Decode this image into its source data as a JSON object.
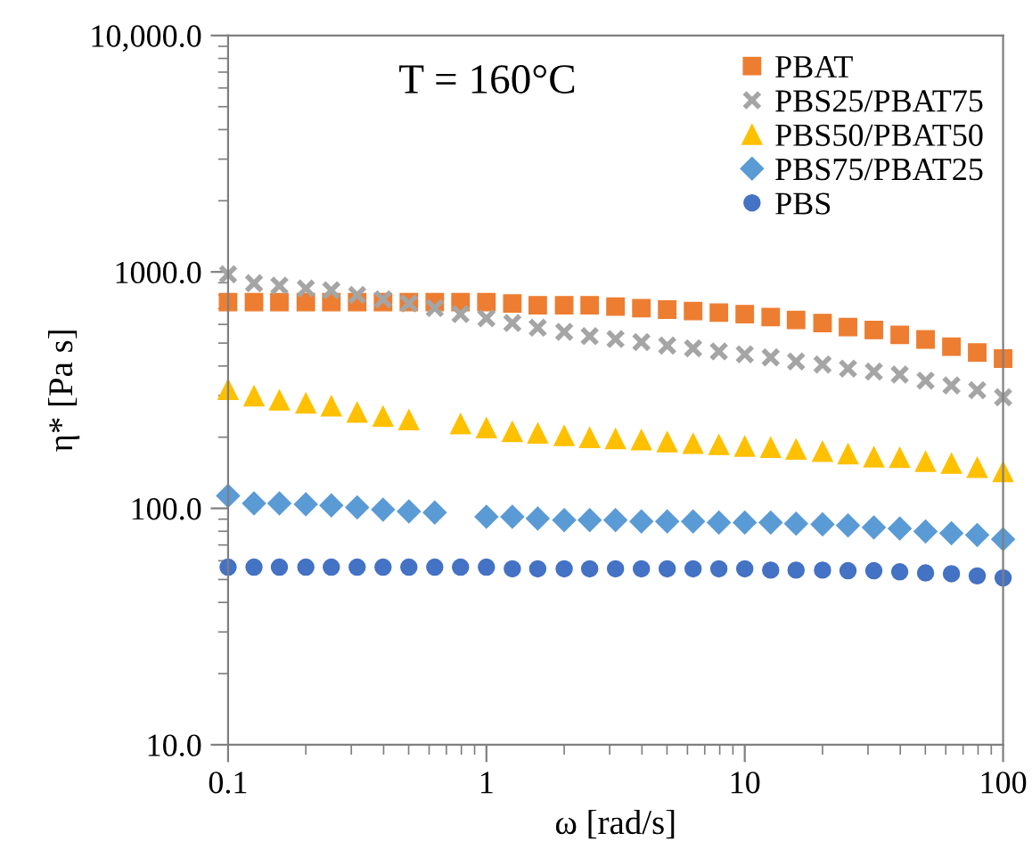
{
  "chart_data": {
    "type": "scatter",
    "title": "T = 160°C",
    "xlabel": "ω [rad/s]",
    "ylabel": "η* [Pa s]",
    "log": "xy",
    "legend": "top right",
    "grid": false,
    "x": [
      0.1,
      0.126,
      0.158,
      0.2,
      0.251,
      0.316,
      0.398,
      0.501,
      0.631,
      0.794,
      1,
      1.26,
      1.58,
      2,
      2.51,
      3.16,
      3.98,
      5.01,
      6.31,
      7.94,
      10,
      12.6,
      15.8,
      20,
      25.1,
      31.6,
      39.8,
      50.1,
      63.1,
      79.4,
      100
    ],
    "xlim": [
      0.1,
      100
    ],
    "xticks": [
      0.1,
      1,
      10,
      100
    ],
    "ylim": [
      10,
      10000
    ],
    "yticks": [
      {
        "value": 10,
        "label": "10.0"
      },
      {
        "value": 100,
        "label": "100.0"
      },
      {
        "value": 1000,
        "label": "1000.0"
      },
      {
        "value": 10000,
        "label": "10,000.0"
      }
    ],
    "series": [
      {
        "name": "PBAT",
        "color": "#ed7d31",
        "marker": "square",
        "values": [
          745,
          745,
          745,
          745,
          745,
          745,
          745,
          745,
          745,
          745,
          745,
          735,
          723,
          723,
          723,
          713,
          703,
          693,
          683,
          673,
          663,
          644,
          626,
          608,
          584,
          568,
          542,
          518,
          483,
          456,
          430
        ]
      },
      {
        "name": "PBS25/PBAT75",
        "color": "#a5a5a5",
        "marker": "cross",
        "values": [
          977,
          896,
          875,
          851,
          836,
          799,
          766,
          736,
          703,
          663,
          637,
          608,
          581,
          558,
          535,
          520,
          505,
          488,
          475,
          461,
          448,
          435,
          418,
          406,
          390,
          379,
          368,
          347,
          331,
          316,
          295
        ]
      },
      {
        "name": "PBS50/PBAT50",
        "color": "#ffc000",
        "marker": "triangle",
        "values": [
          318,
          299,
          287,
          279,
          271,
          255,
          245,
          237,
          null,
          228,
          219,
          211,
          208,
          203,
          199,
          197,
          195,
          191,
          188,
          186,
          183,
          181,
          178,
          174,
          170,
          165,
          164,
          158,
          155,
          149,
          143
        ]
      },
      {
        "name": "PBS75/PBAT25",
        "color": "#5b9bd5",
        "marker": "diamond",
        "values": [
          113,
          105,
          105,
          104,
          103,
          101,
          98.8,
          97.1,
          96.0,
          null,
          92.2,
          92.2,
          90.6,
          89.1,
          89.1,
          89.1,
          88.1,
          88.1,
          88.1,
          87.1,
          87.1,
          87.1,
          86.1,
          85.6,
          84.6,
          83.1,
          82.2,
          79.8,
          78.4,
          77.1,
          74.0
        ]
      },
      {
        "name": "PBS",
        "color": "#4472c4",
        "marker": "circle",
        "values": [
          56.4,
          56.4,
          56.4,
          56.4,
          56.4,
          56.4,
          56.4,
          56.4,
          56.4,
          56.4,
          56.4,
          55.5,
          55.5,
          55.5,
          55.5,
          55.5,
          55.5,
          55.5,
          55.5,
          55.5,
          55.5,
          54.8,
          54.8,
          54.8,
          54.5,
          54.5,
          53.9,
          53.3,
          52.9,
          51.8,
          50.8
        ]
      }
    ]
  }
}
